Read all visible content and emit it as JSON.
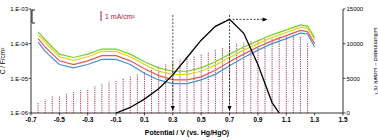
{
  "chart_data": {
    "type": "line",
    "log": "y",
    "x_label": "Potential / V (vs. Hg/HgO)",
    "y_label": "C / F/cm²",
    "y2_label": "ωilluminated − ωdark /s⁻¹",
    "xlim": [
      -0.7,
      1.5
    ],
    "xticks": [
      -0.7,
      -0.5,
      -0.3,
      -0.1,
      0.1,
      0.3,
      0.5,
      0.7,
      0.9,
      1.1,
      1.3,
      1.5
    ],
    "ylim": [
      1e-06,
      0.001
    ],
    "yticks": [
      {
        "value": 1e-06,
        "label": "1.E-06"
      },
      {
        "value": 1e-05,
        "label": "1.E-05"
      },
      {
        "value": 0.0001,
        "label": "1.E-04"
      },
      {
        "value": 0.001,
        "label": "1.E-03"
      }
    ],
    "y2lim": [
      0,
      15000
    ],
    "y2ticks": [
      0,
      5000,
      10000,
      15000
    ],
    "annotations": [
      {
        "text": "1 mA/cm²"
      }
    ],
    "reference_lines": [
      {
        "x": 0.3
      },
      {
        "x": 0.7
      }
    ],
    "series": [
      {
        "type": "bar",
        "color": "#a0203a",
        "line_style": "dotted",
        "x": [
          -0.65,
          -0.6,
          -0.55,
          -0.5,
          -0.45,
          -0.4,
          -0.35,
          -0.3,
          -0.25,
          -0.2,
          -0.15,
          -0.1,
          -0.05,
          0,
          0.05,
          0.1,
          0.15,
          0.2,
          0.25,
          0.3,
          0.35,
          0.4,
          0.45,
          0.5,
          0.55,
          0.6,
          0.65,
          0.7,
          0.75,
          0.8,
          0.85,
          0.9,
          0.95,
          1,
          1.05,
          1.1,
          1.15,
          1.2,
          1.25
        ],
        "values": [
          2e-06,
          2.5e-06,
          3e-06,
          3e-06,
          3.5e-06,
          4e-06,
          4.5e-06,
          5e-06,
          6e-06,
          7e-06,
          8e-06,
          9e-06,
          1e-05,
          1.2e-05,
          1.4e-05,
          1.6e-05,
          1.9e-05,
          2.2e-05,
          2.6e-05,
          3e-05,
          3.5e-05,
          4e-05,
          4.5e-05,
          5e-05,
          6e-05,
          7e-05,
          8e-05,
          9e-05,
          0.0001,
          0.00011,
          0.00012,
          0.00013,
          0.00014,
          0.00015,
          0.00016,
          0.00017,
          0.00018,
          0.00016,
          0.0001
        ]
      },
      {
        "type": "line",
        "color": "#77cc33",
        "x": [
          -0.65,
          -0.6,
          -0.5,
          -0.4,
          -0.3,
          -0.2,
          -0.1,
          0,
          0.1,
          0.2,
          0.3,
          0.4,
          0.5,
          0.6,
          0.7,
          0.8,
          0.9,
          1.0,
          1.1,
          1.2,
          1.25,
          1.3
        ],
        "values": [
          0.00022,
          0.00013,
          5e-05,
          4e-05,
          5e-05,
          7e-05,
          7e-05,
          5e-05,
          3e-05,
          2e-05,
          1.6e-05,
          1.6e-05,
          2e-05,
          3e-05,
          5e-05,
          8e-05,
          0.00012,
          0.00018,
          0.00025,
          0.00035,
          0.00032,
          0.00015
        ]
      },
      {
        "type": "line",
        "color": "#e6d21e",
        "x": [
          -0.65,
          -0.6,
          -0.5,
          -0.4,
          -0.3,
          -0.2,
          -0.1,
          0,
          0.1,
          0.2,
          0.3,
          0.4,
          0.5,
          0.6,
          0.7,
          0.8,
          0.9,
          1.0,
          1.1,
          1.2,
          1.25,
          1.3
        ],
        "values": [
          0.00018,
          0.00011,
          4.2e-05,
          3.3e-05,
          4.2e-05,
          6e-05,
          6e-05,
          4.2e-05,
          2.5e-05,
          1.6e-05,
          1.3e-05,
          1.3e-05,
          1.6e-05,
          2.4e-05,
          4e-05,
          6.5e-05,
          0.0001,
          0.00015,
          0.00021,
          0.0003,
          0.00028,
          0.00013
        ]
      },
      {
        "type": "line",
        "color": "#e05a5a",
        "x": [
          -0.65,
          -0.6,
          -0.5,
          -0.4,
          -0.3,
          -0.2,
          -0.1,
          0,
          0.1,
          0.2,
          0.3,
          0.4,
          0.5,
          0.6,
          0.7,
          0.8,
          0.9,
          1.0,
          1.1,
          1.2,
          1.25,
          1.3
        ],
        "values": [
          0.00014,
          8e-05,
          3.2e-05,
          2.5e-05,
          3.2e-05,
          4.5e-05,
          4.5e-05,
          3.2e-05,
          1.9e-05,
          1.2e-05,
          9e-06,
          9e-06,
          1.1e-05,
          1.7e-05,
          3e-05,
          5e-05,
          8e-05,
          0.00012,
          0.00017,
          0.00024,
          0.00022,
          0.0001
        ]
      },
      {
        "type": "line",
        "color": "#4a8fd0",
        "x": [
          -0.65,
          -0.6,
          -0.5,
          -0.4,
          -0.3,
          -0.2,
          -0.1,
          0,
          0.1,
          0.2,
          0.3,
          0.4,
          0.5,
          0.6,
          0.7,
          0.8,
          0.9,
          1.0,
          1.1,
          1.2,
          1.25,
          1.3
        ],
        "values": [
          0.00011,
          6e-05,
          2.5e-05,
          2e-05,
          2.5e-05,
          3.5e-05,
          3.5e-05,
          2.5e-05,
          1.4e-05,
          9e-06,
          7e-06,
          7e-06,
          9e-06,
          1.3e-05,
          2.3e-05,
          4e-05,
          6.5e-05,
          0.0001,
          0.00014,
          0.0002,
          0.00019,
          8e-05
        ]
      },
      {
        "type": "line",
        "color": "#000000",
        "axis": "y2",
        "x": [
          -0.1,
          0,
          0.1,
          0.2,
          0.3,
          0.4,
          0.5,
          0.6,
          0.7,
          0.8,
          0.9,
          1.0,
          1.05
        ],
        "values": [
          0,
          800,
          2000,
          3500,
          5500,
          8000,
          10500,
          12500,
          13500,
          11500,
          7000,
          1500,
          0
        ]
      }
    ]
  }
}
